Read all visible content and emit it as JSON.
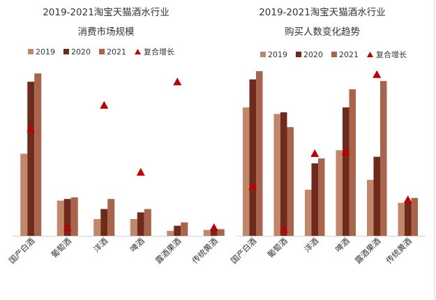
{
  "chart_data": [
    {
      "type": "bar",
      "title_line1": "2019-2021淘宝天猫酒水行业",
      "title_line2": "消费市场规模",
      "categories": [
        "国产白酒",
        "葡萄酒",
        "洋酒",
        "啤酒",
        "露酒果酒",
        "传统黄酒"
      ],
      "series": [
        {
          "name": "2019",
          "color": "#c0876a",
          "values": [
            49,
            21,
            10,
            10,
            3,
            3.5
          ]
        },
        {
          "name": "2020",
          "color": "#6e2a1a",
          "values": [
            92,
            22,
            16,
            14,
            6,
            4
          ]
        },
        {
          "name": "2021",
          "color": "#a9654b",
          "values": [
            97,
            23,
            22,
            16,
            8,
            4
          ]
        }
      ],
      "markers": {
        "name": "复合增长",
        "color": "#c00000",
        "symbol": "triangle",
        "values": [
          64,
          5,
          78,
          38,
          92,
          5
        ]
      },
      "ylim": [
        0,
        100
      ],
      "legend": "top",
      "grid": false
    },
    {
      "type": "bar",
      "title_line1": "2019-2021淘宝天猫酒水行业",
      "title_line2": "购买人数变化趋势",
      "categories": [
        "国产白酒",
        "葡萄酒",
        "洋酒",
        "啤酒",
        "露酒果酒",
        "传统黄酒"
      ],
      "series": [
        {
          "name": "2019",
          "color": "#c0876a",
          "values": [
            78,
            74,
            28,
            52,
            34,
            20
          ]
        },
        {
          "name": "2020",
          "color": "#6e2a1a",
          "values": [
            95,
            75,
            44,
            78,
            48,
            20
          ]
        },
        {
          "name": "2021",
          "color": "#a9654b",
          "values": [
            100,
            66,
            47,
            89,
            94,
            23
          ]
        }
      ],
      "markers": {
        "name": "复合增长",
        "color": "#c00000",
        "symbol": "triangle",
        "values": [
          30,
          4,
          50,
          51,
          98,
          22
        ]
      },
      "ylim": [
        0,
        100
      ],
      "legend": "top",
      "grid": false
    }
  ]
}
